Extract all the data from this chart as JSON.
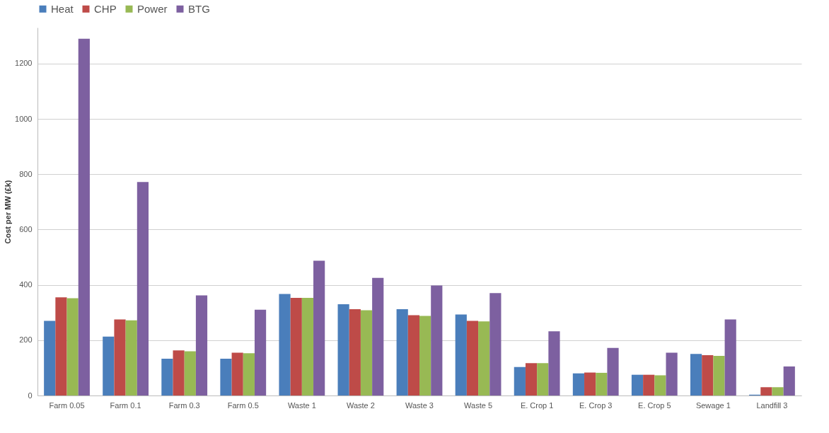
{
  "chart_data": {
    "type": "bar",
    "ylabel": "Cost per MW (£k)",
    "categories": [
      "Farm 0.05",
      "Farm 0.1",
      "Farm 0.3",
      "Farm 0.5",
      "Waste 1",
      "Waste 2",
      "Waste 3",
      "Waste 5",
      "E. Crop 1",
      "E. Crop 3",
      "E. Crop 5",
      "Sewage 1",
      "Landfill 3"
    ],
    "series": [
      {
        "name": "Heat",
        "color": "#4a7ebb",
        "values": [
          270,
          213,
          133,
          133,
          367,
          330,
          312,
          293,
          103,
          80,
          75,
          150,
          3
        ]
      },
      {
        "name": "CHP",
        "color": "#be4b48",
        "values": [
          355,
          275,
          163,
          155,
          353,
          312,
          290,
          270,
          117,
          83,
          75,
          146,
          30
        ]
      },
      {
        "name": "Power",
        "color": "#98b954",
        "values": [
          352,
          272,
          160,
          153,
          353,
          308,
          288,
          268,
          117,
          82,
          73,
          143,
          30
        ]
      },
      {
        "name": "BTG",
        "color": "#7d60a0",
        "values": [
          1290,
          772,
          362,
          310,
          487,
          425,
          398,
          370,
          232,
          172,
          155,
          275,
          105
        ]
      }
    ],
    "ylim": [
      0,
      1330
    ],
    "yticks": [
      0,
      200,
      400,
      600,
      800,
      1000,
      1200
    ],
    "grid": "y",
    "legend": "top"
  }
}
